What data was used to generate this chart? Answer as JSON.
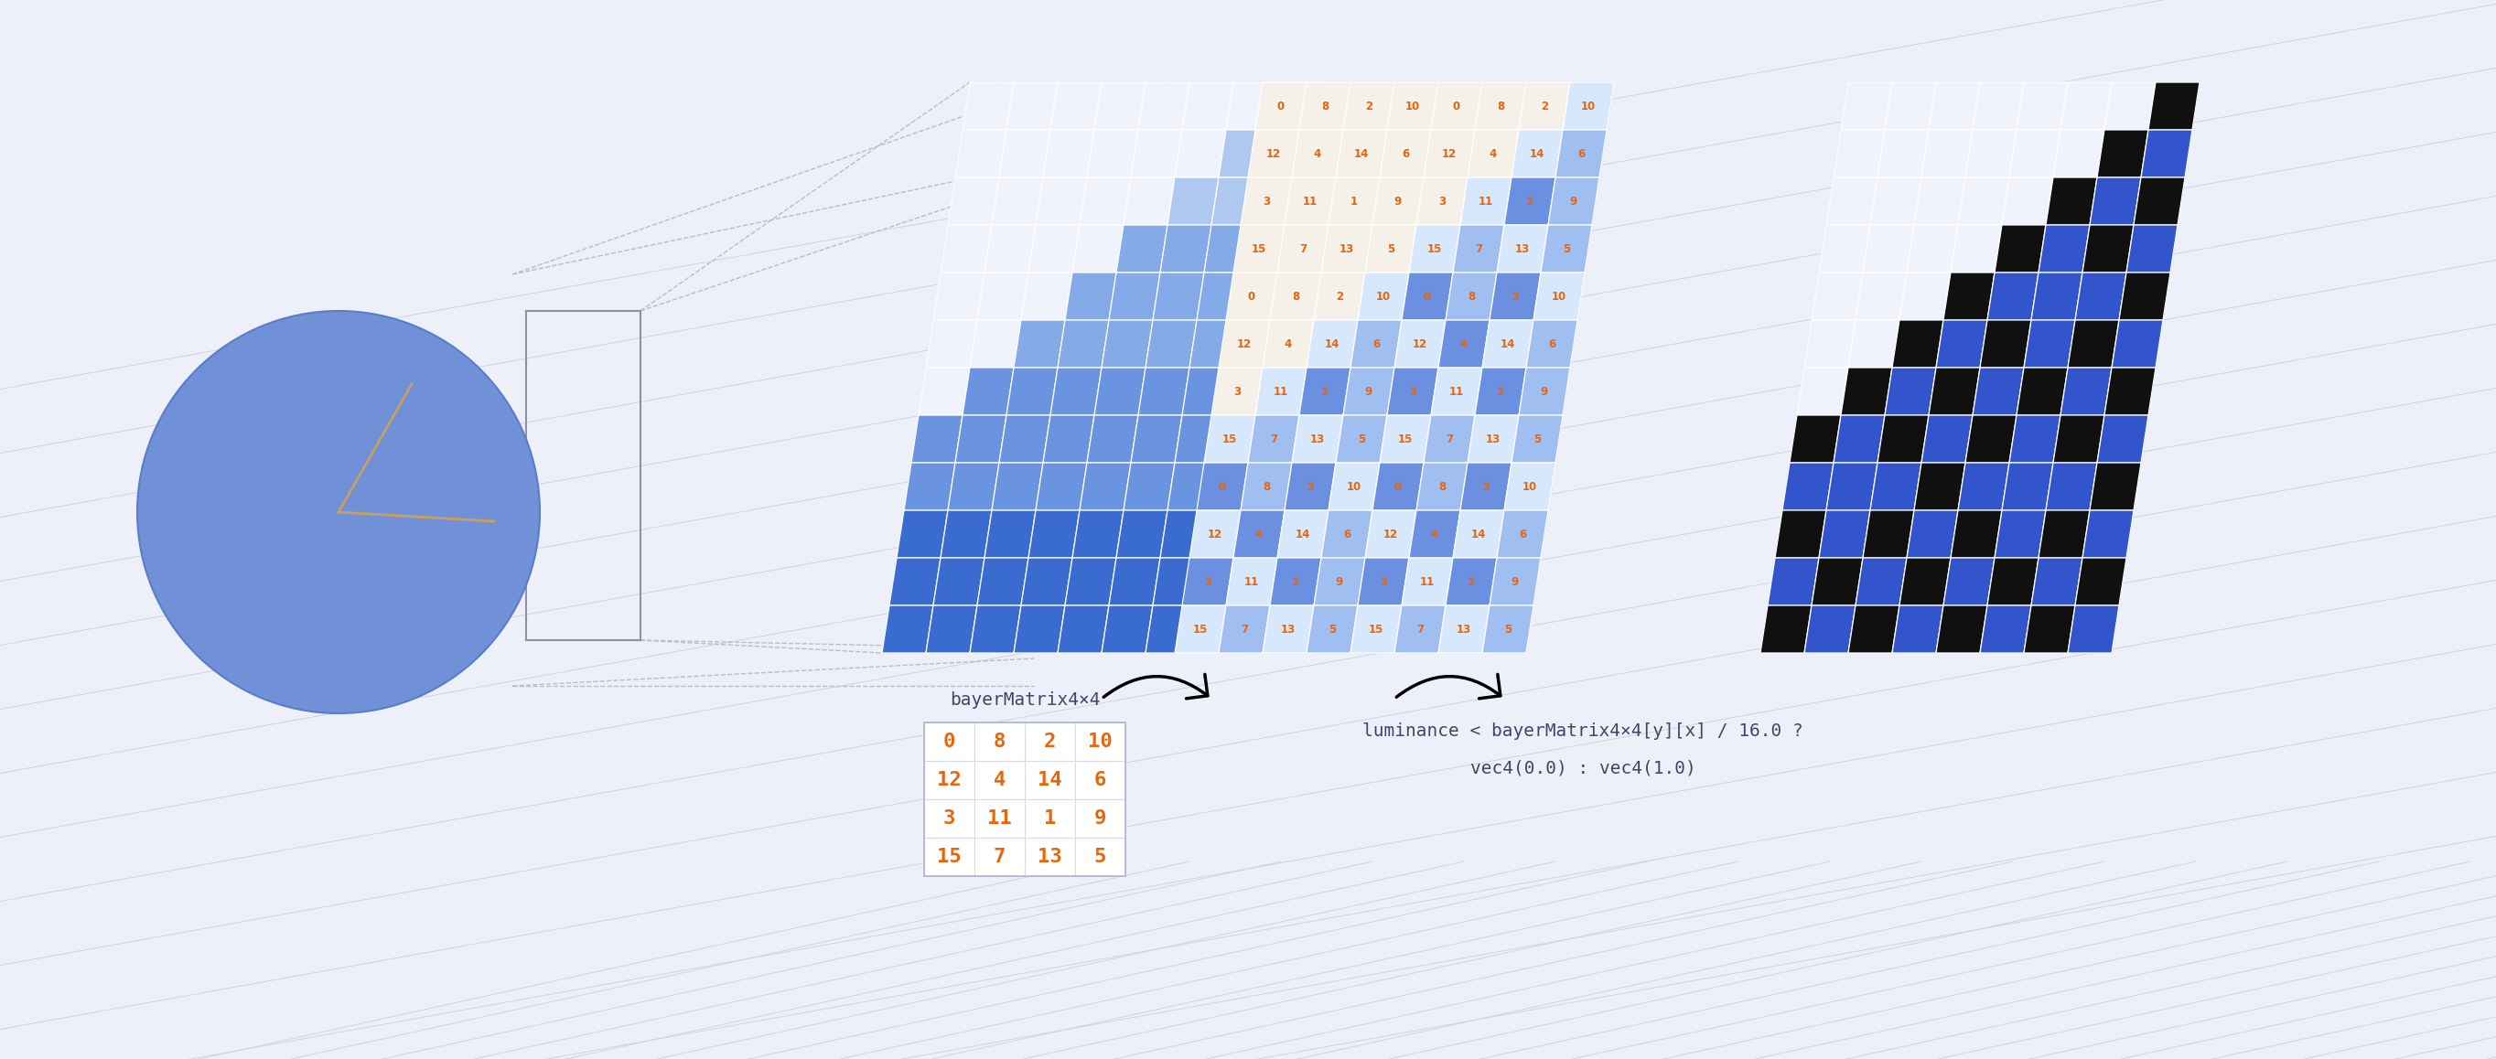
{
  "bg_color": "#edf0f8",
  "bayer_matrix": [
    [
      0,
      8,
      2,
      10
    ],
    [
      12,
      4,
      14,
      6
    ],
    [
      3,
      11,
      1,
      9
    ],
    [
      15,
      7,
      13,
      5
    ]
  ],
  "bayer_label": "bayerMatrix4×4",
  "formula_line1": "luminance < bayerMatrix4×4[y][x] / 16.0 ?",
  "formula_line2": "vec4(0.0) : vec4(1.0)",
  "orange_color": "#e8650a",
  "blue_light": "#85aae8",
  "blue_mid": "#6b94e0",
  "blue_dark": "#3a6cd0",
  "blue_bright": "#3355cc",
  "black_color": "#101010",
  "white_color": "#ffffff",
  "bg_cell": "#f2f4fb",
  "grid_color": "#c8ccd8",
  "dashed_color": "#b8bcd0",
  "circle_color": "#7090d8",
  "circle_outline": "#5a7cca",
  "pie_line_color": "#c8a060",
  "arrow_color": "#111111",
  "label_color": "#444466",
  "input_scene_cols": 8,
  "input_scene_rows": 12,
  "input_staircase": [
    [
      0,
      0,
      0,
      0,
      0,
      0,
      0,
      1
    ],
    [
      0,
      0,
      0,
      0,
      0,
      0,
      1,
      1
    ],
    [
      0,
      0,
      0,
      0,
      0,
      1,
      1,
      1
    ],
    [
      0,
      0,
      0,
      0,
      1,
      1,
      1,
      1
    ],
    [
      0,
      0,
      0,
      1,
      1,
      1,
      1,
      1
    ],
    [
      0,
      0,
      1,
      1,
      1,
      1,
      1,
      1
    ],
    [
      0,
      1,
      1,
      1,
      1,
      1,
      1,
      1
    ],
    [
      1,
      1,
      1,
      1,
      1,
      1,
      1,
      1
    ],
    [
      1,
      1,
      1,
      1,
      1,
      1,
      1,
      1
    ],
    [
      1,
      1,
      1,
      1,
      1,
      1,
      1,
      1
    ],
    [
      1,
      1,
      1,
      1,
      1,
      1,
      1,
      1
    ],
    [
      1,
      1,
      1,
      1,
      1,
      1,
      1,
      1
    ]
  ],
  "bayer_scene": [
    [
      0,
      0,
      0,
      0,
      0,
      0,
      0,
      1
    ],
    [
      0,
      0,
      0,
      0,
      0,
      0,
      1,
      1
    ],
    [
      0,
      0,
      0,
      0,
      0,
      1,
      1,
      1
    ],
    [
      0,
      0,
      0,
      0,
      1,
      1,
      1,
      1
    ],
    [
      0,
      0,
      0,
      1,
      1,
      1,
      1,
      1
    ],
    [
      0,
      0,
      1,
      1,
      1,
      1,
      1,
      1
    ],
    [
      0,
      1,
      1,
      1,
      1,
      1,
      1,
      1
    ],
    [
      1,
      1,
      1,
      1,
      1,
      1,
      1,
      1
    ],
    [
      1,
      1,
      1,
      1,
      1,
      1,
      1,
      1
    ],
    [
      1,
      1,
      1,
      1,
      1,
      1,
      1,
      1
    ],
    [
      1,
      1,
      1,
      1,
      1,
      1,
      1,
      1
    ],
    [
      1,
      1,
      1,
      1,
      1,
      1,
      1,
      1
    ]
  ],
  "output_scene": [
    [
      0,
      0,
      0,
      0,
      0,
      0,
      0,
      1
    ],
    [
      0,
      0,
      0,
      0,
      0,
      0,
      1,
      1
    ],
    [
      0,
      0,
      0,
      0,
      0,
      1,
      1,
      1
    ],
    [
      0,
      0,
      0,
      0,
      1,
      1,
      1,
      1
    ],
    [
      0,
      0,
      0,
      1,
      1,
      1,
      1,
      1
    ],
    [
      0,
      0,
      1,
      1,
      1,
      1,
      1,
      1
    ],
    [
      0,
      1,
      1,
      1,
      1,
      1,
      1,
      1
    ],
    [
      1,
      1,
      1,
      1,
      1,
      1,
      1,
      1
    ],
    [
      1,
      1,
      1,
      1,
      1,
      1,
      1,
      1
    ],
    [
      1,
      1,
      1,
      1,
      1,
      1,
      1,
      1
    ],
    [
      1,
      1,
      1,
      1,
      1,
      1,
      1,
      1
    ],
    [
      1,
      1,
      1,
      1,
      1,
      1,
      1,
      1
    ]
  ]
}
